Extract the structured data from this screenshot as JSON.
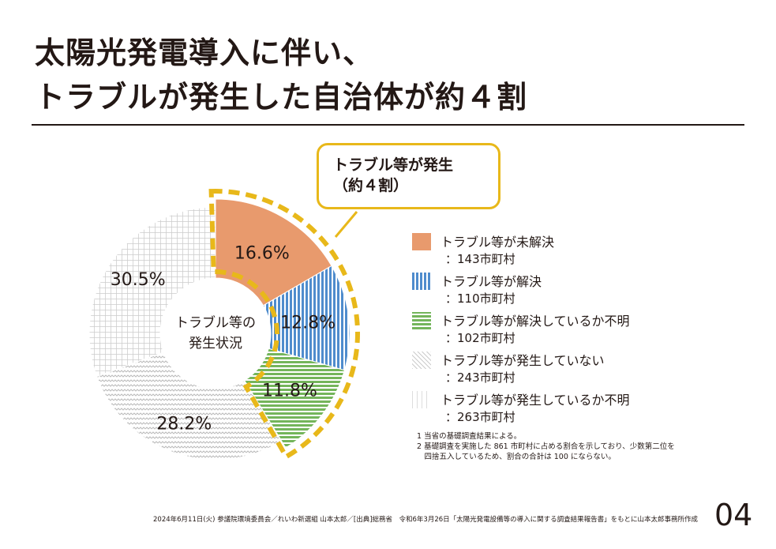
{
  "title_lines": [
    "太陽光発電導入に伴い、",
    "トラブルが発生した自治体が約４割"
  ],
  "callout": {
    "line1": "トラブル等が発生",
    "line2": "（約４割）"
  },
  "chart_data": {
    "type": "pie",
    "center_label": [
      "トラブル等の",
      "発生状況"
    ],
    "slices": [
      {
        "label": "トラブル等が未解決",
        "count": "：143市町村",
        "value": 16.6,
        "value_label": "16.6%",
        "color": "#e89a6d",
        "highlight": true
      },
      {
        "label": "トラブル等が解決",
        "count": "：110市町村",
        "value": 12.8,
        "value_label": "12.8%",
        "color": "#4f8ccd",
        "highlight": true
      },
      {
        "label": "トラブル等が解決しているか不明",
        "count": "：102市町村",
        "value": 11.8,
        "value_label": "11.8%",
        "color": "#74b55b",
        "highlight": true
      },
      {
        "label": "トラブル等が発生していない",
        "count": "：243市町村",
        "value": 28.2,
        "value_label": "28.2%",
        "color": "#c4c4c4",
        "highlight": false
      },
      {
        "label": "トラブル等が発生しているか不明",
        "count": "：263市町村",
        "value": 30.5,
        "value_label": "30.5%",
        "color": "#d6d6d6",
        "highlight": false
      }
    ],
    "highlight_color": "#e8b81a"
  },
  "notes": [
    "1 当省の基礎調査結果による。",
    "2 基礎調査を実施した 861 市町村に占める割合を示しており、少数第二位を",
    "　四捨五入しているため、割合の合計は 100 にならない。"
  ],
  "footer": "2024年6月11日(火) 参議院環境委員会／れいわ新選組 山本太郎／[出典]総務省　令和6年3月26日「太陽光発電設備等の導入に関する調査結果報告書」をもとに山本太郎事務所作成",
  "page_number": "04"
}
